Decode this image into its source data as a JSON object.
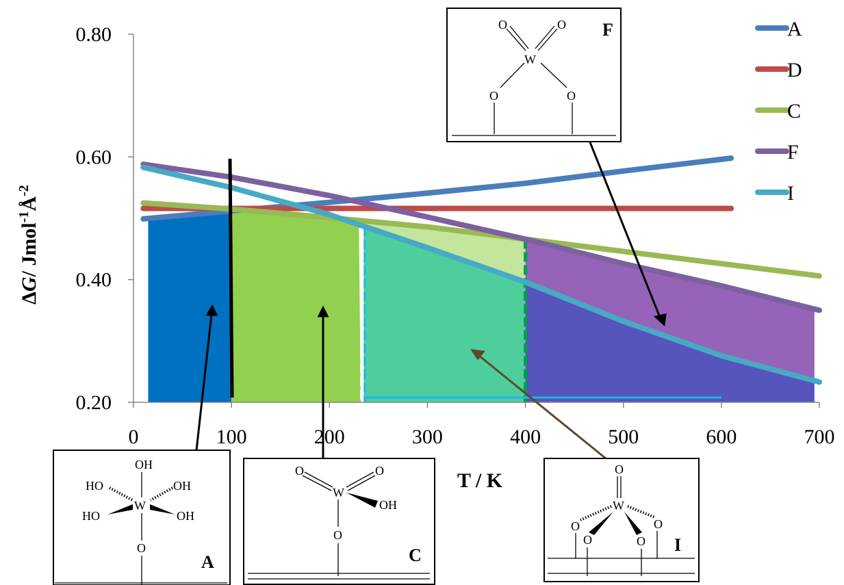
{
  "chart_data": {
    "type": "line",
    "xlabel": "T / K",
    "ylabel_parts": [
      "Δ",
      "G",
      "/ Jmol",
      "-1",
      "Å",
      "-2"
    ],
    "xlim": [
      0,
      700
    ],
    "ylim": [
      0.2,
      0.8
    ],
    "xticks": [
      "0",
      "100",
      "200",
      "300",
      "400",
      "500",
      "600",
      "700"
    ],
    "yticks": [
      "0.20",
      "0.40",
      "0.60",
      "0.80"
    ],
    "grid": false,
    "legend_position": "top-right",
    "series": [
      {
        "name": "A",
        "color": "#4a7ebb",
        "x": [
          10,
          100,
          200,
          300,
          400,
          500,
          610
        ],
        "y": [
          0.499,
          0.512,
          0.526,
          0.541,
          0.557,
          0.577,
          0.598
        ]
      },
      {
        "name": "D",
        "color": "#be4b48",
        "x": [
          10,
          610
        ],
        "y": [
          0.516,
          0.516
        ]
      },
      {
        "name": "C",
        "color": "#98b954",
        "x": [
          10,
          100,
          200,
          300,
          400,
          500,
          700
        ],
        "y": [
          0.525,
          0.515,
          0.501,
          0.486,
          0.466,
          0.446,
          0.406
        ]
      },
      {
        "name": "F",
        "color": "#7d60a0",
        "x": [
          10,
          100,
          200,
          300,
          400,
          500,
          600,
          700
        ],
        "y": [
          0.588,
          0.567,
          0.537,
          0.502,
          0.466,
          0.426,
          0.39,
          0.35
        ]
      },
      {
        "name": "I",
        "color": "#46aac5",
        "x": [
          10,
          100,
          200,
          235,
          300,
          400,
          500,
          600,
          700
        ],
        "y": [
          0.583,
          0.55,
          0.506,
          0.487,
          0.452,
          0.396,
          0.332,
          0.276,
          0.233
        ]
      }
    ],
    "regions": [
      {
        "label": "A",
        "x0": 15,
        "x1": 100,
        "color": "#0070c0",
        "top": "A"
      },
      {
        "label": "C",
        "x0": 100,
        "x1": 232,
        "color": "#92d050",
        "top": "C"
      },
      {
        "label": "I",
        "x0": 235,
        "x1": 400,
        "color": "#4fce9d",
        "top": "I"
      },
      {
        "label": "F",
        "x0": 400,
        "x1": 695,
        "color": "#5555bb",
        "top": "I"
      }
    ],
    "annotations": [
      "A",
      "C",
      "I",
      "F"
    ]
  },
  "structures": {
    "A": {
      "label": "A",
      "atoms": {
        "oh_top": "OH",
        "ho_ul": "HO",
        "oh_ur": "OH",
        "ho_ll": "HO",
        "oh_lr": "OH",
        "w": "W",
        "o": "O"
      }
    },
    "C": {
      "label": "C",
      "atoms": {
        "o1": "O",
        "o2": "O",
        "w": "W",
        "oh": "OH",
        "o3": "O"
      }
    },
    "I": {
      "label": "I",
      "atoms": {
        "o_top": "O",
        "w": "W",
        "o1": "O",
        "o2": "O",
        "o3": "O",
        "o4": "O"
      }
    },
    "F": {
      "label": "F",
      "atoms": {
        "o1": "O",
        "o2": "O",
        "w": "W",
        "o3": "O",
        "o4": "O"
      }
    }
  }
}
